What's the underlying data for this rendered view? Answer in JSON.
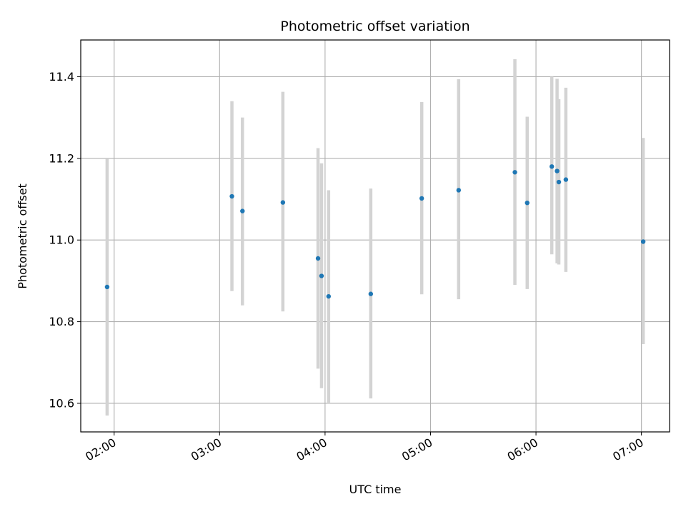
{
  "chart_data": {
    "type": "scatter",
    "title": "Photometric offset variation",
    "xlabel": "UTC time",
    "ylabel": "Photometric offset",
    "x_tick_labels": [
      "02:00",
      "03:00",
      "04:00",
      "05:00",
      "06:00",
      "07:00"
    ],
    "y_tick_labels": [
      "10.6",
      "10.8",
      "11.0",
      "11.2",
      "11.4"
    ],
    "xlim": [
      "01:41",
      "07:16"
    ],
    "ylim": [
      10.53,
      11.49
    ],
    "grid": true,
    "colors": {
      "point": "#1f77b4",
      "errorbar": "#d3d3d3",
      "grid": "#b0b0b0"
    },
    "points": [
      {
        "x": "01:56",
        "y": 10.885,
        "ylow": 10.57,
        "yhigh": 11.2
      },
      {
        "x": "03:07",
        "y": 11.107,
        "ylow": 10.875,
        "yhigh": 11.34
      },
      {
        "x": "03:13",
        "y": 11.071,
        "ylow": 10.84,
        "yhigh": 11.3
      },
      {
        "x": "03:36",
        "y": 11.092,
        "ylow": 10.825,
        "yhigh": 11.363
      },
      {
        "x": "03:56",
        "y": 10.955,
        "ylow": 10.685,
        "yhigh": 11.225
      },
      {
        "x": "03:58",
        "y": 10.912,
        "ylow": 10.637,
        "yhigh": 11.188
      },
      {
        "x": "04:02",
        "y": 10.862,
        "ylow": 10.6,
        "yhigh": 11.122
      },
      {
        "x": "04:26",
        "y": 10.868,
        "ylow": 10.612,
        "yhigh": 11.126
      },
      {
        "x": "04:55",
        "y": 11.102,
        "ylow": 10.867,
        "yhigh": 11.338
      },
      {
        "x": "05:16",
        "y": 11.122,
        "ylow": 10.855,
        "yhigh": 11.394
      },
      {
        "x": "05:48",
        "y": 11.166,
        "ylow": 10.89,
        "yhigh": 11.443
      },
      {
        "x": "05:55",
        "y": 11.091,
        "ylow": 10.88,
        "yhigh": 11.302
      },
      {
        "x": "06:09",
        "y": 11.18,
        "ylow": 10.965,
        "yhigh": 11.4
      },
      {
        "x": "06:12",
        "y": 11.169,
        "ylow": 10.943,
        "yhigh": 11.395
      },
      {
        "x": "06:13",
        "y": 11.142,
        "ylow": 10.94,
        "yhigh": 11.345
      },
      {
        "x": "06:17",
        "y": 11.148,
        "ylow": 10.922,
        "yhigh": 11.373
      },
      {
        "x": "07:01",
        "y": 10.996,
        "ylow": 10.745,
        "yhigh": 11.25
      }
    ]
  }
}
